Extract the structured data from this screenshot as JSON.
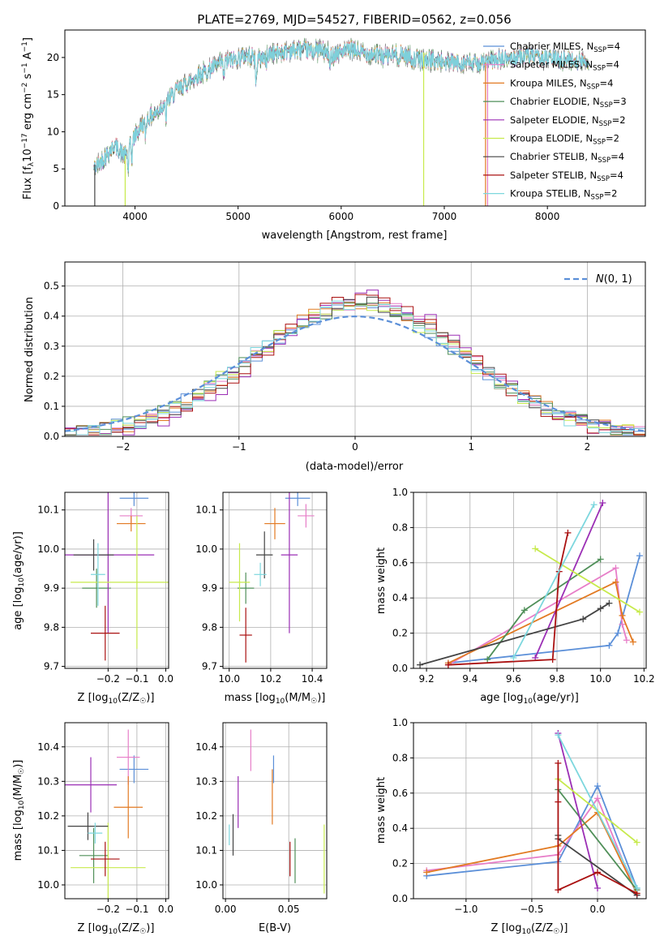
{
  "figure": {
    "title": "PLATE=2769, MJD=54527, FIBERID=0562, z=0.056"
  },
  "models": [
    {
      "name": "Chabrier MILES, N_SSP=4",
      "label": "Chabrier MILES, N",
      "sub": "SSP",
      "tail": "=4",
      "color": "#5b8fd8"
    },
    {
      "name": "Salpeter MILES, N_SSP=4",
      "label": "Salpeter MILES, N",
      "sub": "SSP",
      "tail": "=4",
      "color": "#e77ec8"
    },
    {
      "name": "Kroupa MILES, N_SSP=4",
      "label": "Kroupa MILES, N",
      "sub": "SSP",
      "tail": "=4",
      "color": "#e27a22"
    },
    {
      "name": "Chabrier ELODIE, N_SSP=3",
      "label": "Chabrier ELODIE, N",
      "sub": "SSP",
      "tail": "=3",
      "color": "#4f8f58"
    },
    {
      "name": "Salpeter ELODIE, N_SSP=2",
      "label": "Salpeter ELODIE, N",
      "sub": "SSP",
      "tail": "=2",
      "color": "#9b2fb5"
    },
    {
      "name": "Kroupa ELODIE, N_SSP=2",
      "label": "Kroupa ELODIE, N",
      "sub": "SSP",
      "tail": "=2",
      "color": "#c7ea4c"
    },
    {
      "name": "Chabrier STELIB, N_SSP=4",
      "label": "Chabrier STELIB, N",
      "sub": "SSP",
      "tail": "=4",
      "color": "#444444"
    },
    {
      "name": "Salpeter STELIB, N_SSP=4",
      "label": "Salpeter STELIB, N",
      "sub": "SSP",
      "tail": "=4",
      "color": "#aa1111"
    },
    {
      "name": "Kroupa STELIB, N_SSP=2",
      "label": "Kroupa STELIB, N",
      "sub": "SSP",
      "tail": "=2",
      "color": "#7dd7de"
    }
  ],
  "chart_data": [
    {
      "id": "spectrum",
      "type": "line",
      "title": "PLATE=2769, MJD=54527, FIBERID=0562, z=0.056",
      "xlabel": "wavelength [Angstrom, rest frame]",
      "ylabel": "Flux [f_λ 10^-17 erg cm^-2 s^-1 A^-1]",
      "ylabel_parts": {
        "a": "Flux [f",
        "b": "λ",
        "c": "10",
        "d": "−17",
        "e": " erg cm",
        "f": "−2",
        "g": " s",
        "h": "−1",
        "i": " A",
        "j": "−1",
        "k": "]"
      },
      "xlim": [
        3320,
        8950
      ],
      "ylim": [
        0,
        23.7
      ],
      "xticks": [
        4000,
        5000,
        6000,
        7000,
        8000
      ],
      "yticks": [
        0,
        5,
        10,
        15,
        20
      ],
      "grid": false,
      "legend": "upper right",
      "continuum_x": [
        3600,
        3700,
        3800,
        3900,
        4000,
        4100,
        4200,
        4300,
        4400,
        4500,
        4600,
        4700,
        4800,
        4900,
        5000,
        5100,
        5200,
        5300,
        5400,
        5500,
        5600,
        5700,
        5800,
        5900,
        6000,
        6100,
        6200,
        6300,
        6400,
        6500,
        6600,
        6700,
        6800,
        6900,
        7000,
        7100,
        7200,
        7300,
        7400,
        7500,
        7600,
        7700,
        7800,
        7900,
        8000,
        8100,
        8200,
        8300,
        8400
      ],
      "continuum_y": [
        5.0,
        6.5,
        8.2,
        6.8,
        9.5,
        11.5,
        12.5,
        14.0,
        15.5,
        16.5,
        17.5,
        18.2,
        19.0,
        19.5,
        20.0,
        20.3,
        19.8,
        20.5,
        20.6,
        21.0,
        21.0,
        20.9,
        21.0,
        20.4,
        20.8,
        21.0,
        20.6,
        20.5,
        20.2,
        20.3,
        20.5,
        19.8,
        19.7,
        19.6,
        19.4,
        19.2,
        19.3,
        19.1,
        19.3,
        19.6,
        19.8,
        20.0,
        20.2,
        20.0,
        19.9,
        19.8,
        19.7,
        19.5,
        19.5
      ]
    },
    {
      "id": "residuals",
      "type": "histogram",
      "xlabel": "(data-model)/error",
      "ylabel": "Normed distribution",
      "xlim": [
        -2.5,
        2.5
      ],
      "ylim": [
        0,
        0.58
      ],
      "xticks": [
        -2,
        -1,
        0,
        1,
        2
      ],
      "yticks": [
        0.0,
        0.1,
        0.2,
        0.3,
        0.4,
        0.5
      ],
      "grid": true,
      "legend": "upper right",
      "legend_label": "N(0,1)",
      "bin_width": 0.1,
      "reference_curve": "normal(0,1)"
    },
    {
      "id": "age_vs_Z",
      "type": "scatter",
      "xlabel": "Z [log10(Z/Z☉)]",
      "ylabel": "age  [log10(age/yr)]",
      "xlim": [
        -0.35,
        0.01
      ],
      "ylim": [
        9.695,
        10.145
      ],
      "xticks": [
        -0.2,
        -0.1,
        0.0
      ],
      "yticks": [
        9.7,
        9.8,
        9.9,
        10.0,
        10.1
      ],
      "grid": true,
      "points": [
        {
          "x": -0.11,
          "y": 10.13,
          "xerr": 0.05,
          "yerr": 0.02
        },
        {
          "x": -0.12,
          "y": 10.085,
          "xerr": 0.04,
          "yerr": 0.02
        },
        {
          "x": -0.12,
          "y": 10.065,
          "xerr": 0.05,
          "yerr": 0.02
        },
        {
          "x": -0.24,
          "y": 9.9,
          "xerr": 0.05,
          "yerr": 0.05
        },
        {
          "x": -0.2,
          "y": 9.985,
          "xerr": 0.16,
          "yerr": 0.2
        },
        {
          "x": -0.1,
          "y": 9.915,
          "xerr": 0.23,
          "yerr": 0.17
        },
        {
          "x": -0.25,
          "y": 9.985,
          "xerr": 0.07,
          "yerr": 0.04
        },
        {
          "x": -0.21,
          "y": 9.785,
          "xerr": 0.05,
          "yerr": 0.07
        },
        {
          "x": -0.235,
          "y": 9.935,
          "xerr": 0.025,
          "yerr": 0.08
        }
      ]
    },
    {
      "id": "age_vs_mass",
      "type": "scatter",
      "xlabel": "mass [log10(M/M☉)]",
      "xlim": [
        9.97,
        10.47
      ],
      "ylim": [
        9.695,
        10.145
      ],
      "xticks": [
        10.0,
        10.2,
        10.4
      ],
      "yticks": [
        9.7,
        9.8,
        9.9,
        10.0,
        10.1
      ],
      "grid": true,
      "points": [
        {
          "x": 10.33,
          "y": 10.13,
          "xerr": 0.06,
          "yerr": 0.02
        },
        {
          "x": 10.37,
          "y": 10.085,
          "xerr": 0.04,
          "yerr": 0.03
        },
        {
          "x": 10.22,
          "y": 10.065,
          "xerr": 0.05,
          "yerr": 0.04
        },
        {
          "x": 10.08,
          "y": 9.9,
          "xerr": 0.04,
          "yerr": 0.04
        },
        {
          "x": 10.29,
          "y": 9.985,
          "xerr": 0.04,
          "yerr": 0.2
        },
        {
          "x": 10.05,
          "y": 9.915,
          "xerr": 0.05,
          "yerr": 0.1
        },
        {
          "x": 10.17,
          "y": 9.985,
          "xerr": 0.04,
          "yerr": 0.06
        },
        {
          "x": 10.08,
          "y": 9.78,
          "xerr": 0.03,
          "yerr": 0.07
        },
        {
          "x": 10.15,
          "y": 9.935,
          "xerr": 0.03,
          "yerr": 0.03
        }
      ]
    },
    {
      "id": "mw_vs_age",
      "type": "line",
      "xlabel": "age  [log10(age/yr)]",
      "ylabel": "mass weight",
      "xlim": [
        9.14,
        10.21
      ],
      "ylim": [
        0,
        1
      ],
      "xticks": [
        9.2,
        9.4,
        9.6,
        9.8,
        10.0,
        10.2
      ],
      "yticks": [
        0.0,
        0.2,
        0.4,
        0.6,
        0.8,
        1.0
      ],
      "grid": true,
      "series": [
        {
          "x": [
            9.3,
            10.04,
            10.08,
            10.18
          ],
          "y": [
            0.03,
            0.13,
            0.2,
            0.64
          ]
        },
        {
          "x": [
            9.3,
            10.07,
            10.1,
            10.12
          ],
          "y": [
            0.02,
            0.57,
            0.25,
            0.16
          ]
        },
        {
          "x": [
            9.3,
            10.07,
            10.1,
            10.15
          ],
          "y": [
            0.03,
            0.49,
            0.3,
            0.15
          ]
        },
        {
          "x": [
            9.48,
            9.65,
            10.0
          ],
          "y": [
            0.05,
            0.33,
            0.62
          ]
        },
        {
          "x": [
            9.7,
            10.01
          ],
          "y": [
            0.06,
            0.94
          ]
        },
        {
          "x": [
            9.7,
            10.18
          ],
          "y": [
            0.68,
            0.32
          ]
        },
        {
          "x": [
            9.17,
            9.92,
            10.0,
            10.04
          ],
          "y": [
            0.02,
            0.28,
            0.34,
            0.37
          ]
        },
        {
          "x": [
            9.3,
            9.78,
            9.81,
            9.85
          ],
          "y": [
            0.02,
            0.05,
            0.55,
            0.77
          ]
        },
        {
          "x": [
            9.6,
            9.97
          ],
          "y": [
            0.06,
            0.93
          ]
        }
      ]
    },
    {
      "id": "mass_vs_Z",
      "type": "scatter",
      "xlabel": "Z [log10(Z/Z☉)]",
      "ylabel": "mass [log10(M/M☉)]",
      "xlim": [
        -0.35,
        0.01
      ],
      "ylim": [
        9.96,
        10.47
      ],
      "xticks": [
        -0.2,
        -0.1,
        0.0
      ],
      "yticks": [
        10.0,
        10.1,
        10.2,
        10.3,
        10.4
      ],
      "grid": true,
      "points": [
        {
          "x": -0.11,
          "y": 10.335,
          "xerr": 0.05,
          "yerr": 0.04
        },
        {
          "x": -0.13,
          "y": 10.37,
          "xerr": 0.04,
          "yerr": 0.08
        },
        {
          "x": -0.13,
          "y": 10.225,
          "xerr": 0.05,
          "yerr": 0.09
        },
        {
          "x": -0.25,
          "y": 10.085,
          "xerr": 0.05,
          "yerr": 0.08
        },
        {
          "x": -0.26,
          "y": 10.29,
          "xerr": 0.09,
          "yerr": 0.08
        },
        {
          "x": -0.2,
          "y": 10.05,
          "xerr": 0.13,
          "yerr": 0.13
        },
        {
          "x": -0.27,
          "y": 10.17,
          "xerr": 0.07,
          "yerr": 0.04
        },
        {
          "x": -0.21,
          "y": 10.075,
          "xerr": 0.05,
          "yerr": 0.05
        },
        {
          "x": -0.245,
          "y": 10.15,
          "xerr": 0.025,
          "yerr": 0.03
        }
      ]
    },
    {
      "id": "mass_vs_ebv",
      "type": "errorbar",
      "xlabel": "E(B-V)",
      "xlim": [
        -0.002,
        0.08
      ],
      "ylim": [
        9.96,
        10.47
      ],
      "xticks": [
        0.0,
        0.05
      ],
      "yticks": [
        10.0,
        10.1,
        10.2,
        10.3,
        10.4
      ],
      "grid": true,
      "points": [
        {
          "x": 0.038,
          "y": 10.335,
          "yerr": 0.04
        },
        {
          "x": 0.02,
          "y": 10.39,
          "yerr": 0.06
        },
        {
          "x": 0.037,
          "y": 10.255,
          "yerr": 0.08
        },
        {
          "x": 0.055,
          "y": 10.07,
          "yerr": 0.065
        },
        {
          "x": 0.01,
          "y": 10.24,
          "yerr": 0.075
        },
        {
          "x": 0.078,
          "y": 10.075,
          "yerr": 0.1
        },
        {
          "x": 0.006,
          "y": 10.145,
          "yerr": 0.06
        },
        {
          "x": 0.051,
          "y": 10.075,
          "yerr": 0.05
        },
        {
          "x": 0.003,
          "y": 10.145,
          "yerr": 0.03
        }
      ]
    },
    {
      "id": "mw_vs_Z",
      "type": "line",
      "xlabel": "Z [log10(Z/Z☉)]",
      "ylabel": "mass weight",
      "xlim": [
        -1.4,
        0.37
      ],
      "ylim": [
        0,
        1
      ],
      "xticks": [
        -1.0,
        -0.5,
        0.0
      ],
      "yticks": [
        0.0,
        0.2,
        0.4,
        0.6,
        0.8,
        1.0
      ],
      "grid": true,
      "series": [
        {
          "x": [
            -1.3,
            -0.3,
            0.0,
            0.3
          ],
          "y": [
            0.13,
            0.21,
            0.64,
            0.06
          ]
        },
        {
          "x": [
            -1.3,
            -0.3,
            0.0,
            0.3
          ],
          "y": [
            0.16,
            0.25,
            0.57,
            0.02
          ]
        },
        {
          "x": [
            -1.3,
            -0.3,
            0.0,
            0.3
          ],
          "y": [
            0.15,
            0.3,
            0.49,
            0.03
          ]
        },
        {
          "x": [
            -0.3,
            0.3
          ],
          "y": [
            0.62,
            0.05
          ]
        },
        {
          "x": [
            -0.3,
            0.0
          ],
          "y": [
            0.94,
            0.06
          ]
        },
        {
          "x": [
            -0.3,
            0.3
          ],
          "y": [
            0.68,
            0.32
          ]
        },
        {
          "x": [
            -0.3,
            -0.3,
            0.3
          ],
          "y": [
            0.36,
            0.34,
            0.02
          ]
        },
        {
          "x": [
            -0.3,
            -0.3,
            -0.3,
            0.0,
            0.3
          ],
          "y": [
            0.77,
            0.55,
            0.05,
            0.15,
            0.03
          ]
        },
        {
          "x": [
            -0.3,
            0.3
          ],
          "y": [
            0.93,
            0.06
          ]
        }
      ]
    }
  ],
  "panel_labels": {
    "spectrum_ylabel": "Flux [fλ10−17 erg cm−2 s−1 A−1]",
    "age_Z_xlabel": {
      "pre": "Z [log",
      "sub": "10",
      "post": "(Z/Z",
      "sun": "☉",
      "end": ")]"
    },
    "age_ylabel": {
      "pre": "age  [log",
      "sub": "10",
      "post": "(age/yr)]"
    },
    "mass_xlabel": {
      "pre": "mass [log",
      "sub": "10",
      "post": "(M/M",
      "sun": "☉",
      "end": ")]"
    },
    "mw_ylabel": "mass weight",
    "ebv_xlabel": "E(B-V)",
    "normal_label": {
      "pre": "N",
      "post": "(0, 1)"
    }
  }
}
